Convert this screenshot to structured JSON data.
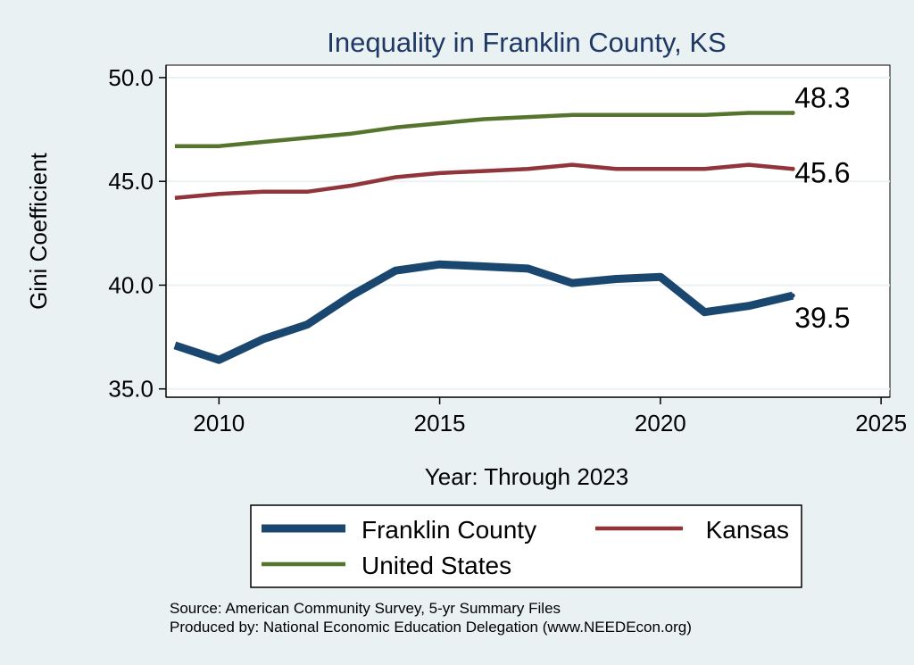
{
  "chart_data": {
    "type": "line",
    "title": "Inequality in Franklin County, KS",
    "xlabel": "Year: Through 2023",
    "ylabel": "Gini Coefficient",
    "xlim": [
      2008.8,
      2025.2
    ],
    "ylim": [
      34.6,
      50.6
    ],
    "xticks": [
      2010,
      2015,
      2020,
      2025
    ],
    "yticks": [
      35.0,
      40.0,
      45.0,
      50.0
    ],
    "xtick_labels": [
      "2010",
      "2015",
      "2020",
      "2025"
    ],
    "ytick_labels": [
      "35.0",
      "40.0",
      "45.0",
      "50.0"
    ],
    "x": [
      2009,
      2010,
      2011,
      2012,
      2013,
      2014,
      2015,
      2016,
      2017,
      2018,
      2019,
      2020,
      2021,
      2022,
      2023
    ],
    "series": [
      {
        "name": "Franklin County",
        "color": "#1a476f",
        "values": [
          37.1,
          36.4,
          37.4,
          38.1,
          39.5,
          40.7,
          41.0,
          40.9,
          40.8,
          40.1,
          40.3,
          40.4,
          38.7,
          39.0,
          39.5
        ],
        "end_label": "39.5"
      },
      {
        "name": "Kansas",
        "color": "#90353b",
        "values": [
          44.2,
          44.4,
          44.5,
          44.5,
          44.8,
          45.2,
          45.4,
          45.5,
          45.6,
          45.8,
          45.6,
          45.6,
          45.6,
          45.8,
          45.6
        ],
        "end_label": "45.6"
      },
      {
        "name": "United States",
        "color": "#55752f",
        "values": [
          46.7,
          46.7,
          46.9,
          47.1,
          47.3,
          47.6,
          47.8,
          48.0,
          48.1,
          48.2,
          48.2,
          48.2,
          48.2,
          48.3,
          48.3
        ],
        "end_label": "48.3"
      }
    ],
    "legend": {
      "position": "bottom",
      "entries": [
        "Franklin County",
        "Kansas",
        "United States"
      ]
    },
    "grid": true
  },
  "footer": {
    "source_line": "Source: American Community Survey, 5-yr Summary Files",
    "produced_line": "Produced by: National Economic Education Delegation (www.NEEDEcon.org)"
  },
  "colors": {
    "background": "#eaf1f3",
    "plot_background": "#ffffff",
    "grid": "#eaf2f3",
    "title": "#1f3864"
  }
}
